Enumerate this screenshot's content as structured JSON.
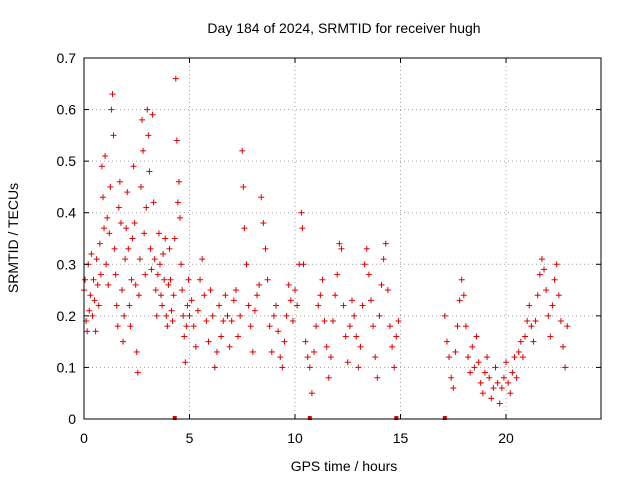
{
  "chart_data": {
    "type": "scatter",
    "title": "Day 184 of 2024, SRMTID for receiver hugh",
    "xlabel": "GPS time / hours",
    "ylabel": "SRMTID / TECUs",
    "xlim": [
      0,
      24.5
    ],
    "ylim": [
      0,
      0.7
    ],
    "xticks": [
      0,
      5,
      10,
      15,
      20
    ],
    "yticks": [
      0,
      0.1,
      0.2,
      0.3,
      0.4,
      0.5,
      0.6,
      0.7
    ],
    "grid": true,
    "marker": "+",
    "marker_color": "#e00000",
    "data_gaps_hours": [
      [
        15.0,
        17.1
      ]
    ],
    "baseline_markers_x": [
      4.3,
      10.7,
      14.8,
      17.1
    ],
    "series": [
      {
        "name": "SRMTID",
        "points": [
          [
            0.0,
            0.25
          ],
          [
            0.05,
            0.27
          ],
          [
            0.1,
            0.19
          ],
          [
            0.15,
            0.17
          ],
          [
            0.2,
            0.3
          ],
          [
            0.25,
            0.21
          ],
          [
            0.3,
            0.24
          ],
          [
            0.35,
            0.32
          ],
          [
            0.4,
            0.2
          ],
          [
            0.45,
            0.27
          ],
          [
            0.5,
            0.23
          ],
          [
            0.55,
            0.17
          ],
          [
            0.6,
            0.31
          ],
          [
            0.65,
            0.26
          ],
          [
            0.7,
            0.22
          ],
          [
            0.75,
            0.34
          ],
          [
            0.8,
            0.28
          ],
          [
            0.85,
            0.49
          ],
          [
            0.9,
            0.43
          ],
          [
            0.95,
            0.37
          ],
          [
            1.0,
            0.51
          ],
          [
            1.05,
            0.3
          ],
          [
            1.1,
            0.39
          ],
          [
            1.15,
            0.26
          ],
          [
            1.2,
            0.36
          ],
          [
            1.25,
            0.45
          ],
          [
            1.3,
            0.6
          ],
          [
            1.35,
            0.63
          ],
          [
            1.4,
            0.55
          ],
          [
            1.45,
            0.33
          ],
          [
            1.5,
            0.28
          ],
          [
            1.55,
            0.22
          ],
          [
            1.6,
            0.18
          ],
          [
            1.65,
            0.41
          ],
          [
            1.7,
            0.46
          ],
          [
            1.75,
            0.38
          ],
          [
            1.8,
            0.25
          ],
          [
            1.85,
            0.15
          ],
          [
            1.9,
            0.2
          ],
          [
            1.95,
            0.31
          ],
          [
            2.0,
            0.37
          ],
          [
            2.05,
            0.44
          ],
          [
            2.1,
            0.33
          ],
          [
            2.15,
            0.22
          ],
          [
            2.2,
            0.18
          ],
          [
            2.25,
            0.27
          ],
          [
            2.3,
            0.35
          ],
          [
            2.35,
            0.49
          ],
          [
            2.4,
            0.38
          ],
          [
            2.45,
            0.26
          ],
          [
            2.5,
            0.13
          ],
          [
            2.55,
            0.09
          ],
          [
            2.6,
            0.24
          ],
          [
            2.65,
            0.31
          ],
          [
            2.7,
            0.45
          ],
          [
            2.75,
            0.58
          ],
          [
            2.8,
            0.52
          ],
          [
            2.85,
            0.36
          ],
          [
            2.9,
            0.28
          ],
          [
            2.95,
            0.41
          ],
          [
            3.0,
            0.6
          ],
          [
            3.05,
            0.55
          ],
          [
            3.1,
            0.48
          ],
          [
            3.15,
            0.33
          ],
          [
            3.2,
            0.29
          ],
          [
            3.25,
            0.59
          ],
          [
            3.3,
            0.42
          ],
          [
            3.35,
            0.31
          ],
          [
            3.4,
            0.25
          ],
          [
            3.45,
            0.2
          ],
          [
            3.5,
            0.28
          ],
          [
            3.55,
            0.36
          ],
          [
            3.6,
            0.3
          ],
          [
            3.65,
            0.24
          ],
          [
            3.7,
            0.22
          ],
          [
            3.75,
            0.32
          ],
          [
            3.8,
            0.27
          ],
          [
            3.85,
            0.35
          ],
          [
            3.9,
            0.2
          ],
          [
            3.95,
            0.18
          ],
          [
            4.0,
            0.26
          ],
          [
            4.05,
            0.33
          ],
          [
            4.1,
            0.27
          ],
          [
            4.15,
            0.21
          ],
          [
            4.2,
            0.19
          ],
          [
            4.25,
            0.24
          ],
          [
            4.3,
            0.35
          ],
          [
            4.35,
            0.66
          ],
          [
            4.4,
            0.54
          ],
          [
            4.45,
            0.42
          ],
          [
            4.5,
            0.46
          ],
          [
            4.55,
            0.39
          ],
          [
            4.6,
            0.3
          ],
          [
            4.65,
            0.25
          ],
          [
            4.7,
            0.2
          ],
          [
            4.75,
            0.16
          ],
          [
            4.8,
            0.11
          ],
          [
            4.85,
            0.18
          ],
          [
            4.9,
            0.22
          ],
          [
            4.95,
            0.27
          ],
          [
            5.0,
            0.2
          ],
          [
            5.1,
            0.23
          ],
          [
            5.2,
            0.18
          ],
          [
            5.3,
            0.14
          ],
          [
            5.4,
            0.21
          ],
          [
            5.5,
            0.27
          ],
          [
            5.6,
            0.31
          ],
          [
            5.7,
            0.24
          ],
          [
            5.8,
            0.19
          ],
          [
            5.9,
            0.15
          ],
          [
            6.0,
            0.25
          ],
          [
            6.1,
            0.2
          ],
          [
            6.2,
            0.1
          ],
          [
            6.3,
            0.13
          ],
          [
            6.4,
            0.22
          ],
          [
            6.5,
            0.16
          ],
          [
            6.6,
            0.19
          ],
          [
            6.7,
            0.24
          ],
          [
            6.8,
            0.2
          ],
          [
            6.9,
            0.14
          ],
          [
            7.0,
            0.19
          ],
          [
            7.1,
            0.23
          ],
          [
            7.2,
            0.25
          ],
          [
            7.3,
            0.16
          ],
          [
            7.4,
            0.2
          ],
          [
            7.5,
            0.52
          ],
          [
            7.55,
            0.45
          ],
          [
            7.6,
            0.37
          ],
          [
            7.7,
            0.3
          ],
          [
            7.8,
            0.22
          ],
          [
            7.9,
            0.18
          ],
          [
            8.0,
            0.13
          ],
          [
            8.1,
            0.21
          ],
          [
            8.2,
            0.24
          ],
          [
            8.3,
            0.26
          ],
          [
            8.4,
            0.43
          ],
          [
            8.5,
            0.38
          ],
          [
            8.6,
            0.33
          ],
          [
            8.7,
            0.27
          ],
          [
            8.8,
            0.18
          ],
          [
            8.9,
            0.13
          ],
          [
            9.0,
            0.2
          ],
          [
            9.1,
            0.22
          ],
          [
            9.2,
            0.17
          ],
          [
            9.3,
            0.12
          ],
          [
            9.4,
            0.1
          ],
          [
            9.5,
            0.15
          ],
          [
            9.6,
            0.2
          ],
          [
            9.7,
            0.26
          ],
          [
            9.8,
            0.23
          ],
          [
            9.9,
            0.19
          ],
          [
            10.0,
            0.25
          ],
          [
            10.1,
            0.22
          ],
          [
            10.2,
            0.3
          ],
          [
            10.3,
            0.4
          ],
          [
            10.35,
            0.37
          ],
          [
            10.4,
            0.3
          ],
          [
            10.5,
            0.15
          ],
          [
            10.6,
            0.12
          ],
          [
            10.7,
            0.1
          ],
          [
            10.8,
            0.05
          ],
          [
            10.9,
            0.13
          ],
          [
            11.0,
            0.18
          ],
          [
            11.1,
            0.22
          ],
          [
            11.2,
            0.24
          ],
          [
            11.3,
            0.27
          ],
          [
            11.4,
            0.19
          ],
          [
            11.5,
            0.14
          ],
          [
            11.6,
            0.08
          ],
          [
            11.7,
            0.12
          ],
          [
            11.8,
            0.19
          ],
          [
            11.9,
            0.24
          ],
          [
            12.0,
            0.28
          ],
          [
            12.1,
            0.34
          ],
          [
            12.2,
            0.33
          ],
          [
            12.3,
            0.22
          ],
          [
            12.4,
            0.16
          ],
          [
            12.5,
            0.11
          ],
          [
            12.6,
            0.18
          ],
          [
            12.7,
            0.23
          ],
          [
            12.8,
            0.2
          ],
          [
            12.9,
            0.16
          ],
          [
            13.0,
            0.1
          ],
          [
            13.1,
            0.14
          ],
          [
            13.2,
            0.22
          ],
          [
            13.3,
            0.3
          ],
          [
            13.4,
            0.33
          ],
          [
            13.5,
            0.28
          ],
          [
            13.6,
            0.23
          ],
          [
            13.7,
            0.18
          ],
          [
            13.8,
            0.12
          ],
          [
            13.9,
            0.08
          ],
          [
            14.0,
            0.2
          ],
          [
            14.1,
            0.26
          ],
          [
            14.2,
            0.31
          ],
          [
            14.3,
            0.34
          ],
          [
            14.4,
            0.25
          ],
          [
            14.5,
            0.18
          ],
          [
            14.6,
            0.14
          ],
          [
            14.7,
            0.1
          ],
          [
            14.8,
            0.16
          ],
          [
            14.9,
            0.19
          ],
          [
            17.1,
            0.2
          ],
          [
            17.2,
            0.15
          ],
          [
            17.3,
            0.12
          ],
          [
            17.4,
            0.08
          ],
          [
            17.5,
            0.06
          ],
          [
            17.6,
            0.13
          ],
          [
            17.7,
            0.18
          ],
          [
            17.8,
            0.23
          ],
          [
            17.9,
            0.27
          ],
          [
            18.0,
            0.24
          ],
          [
            18.1,
            0.18
          ],
          [
            18.2,
            0.12
          ],
          [
            18.3,
            0.09
          ],
          [
            18.4,
            0.14
          ],
          [
            18.5,
            0.1
          ],
          [
            18.6,
            0.16
          ],
          [
            18.7,
            0.11
          ],
          [
            18.8,
            0.07
          ],
          [
            18.9,
            0.05
          ],
          [
            19.0,
            0.09
          ],
          [
            19.1,
            0.12
          ],
          [
            19.2,
            0.08
          ],
          [
            19.3,
            0.04
          ],
          [
            19.4,
            0.06
          ],
          [
            19.5,
            0.1
          ],
          [
            19.6,
            0.07
          ],
          [
            19.7,
            0.03
          ],
          [
            19.8,
            0.06
          ],
          [
            19.9,
            0.08
          ],
          [
            20.0,
            0.11
          ],
          [
            20.1,
            0.07
          ],
          [
            20.2,
            0.05
          ],
          [
            20.3,
            0.09
          ],
          [
            20.4,
            0.12
          ],
          [
            20.5,
            0.08
          ],
          [
            20.6,
            0.13
          ],
          [
            20.7,
            0.15
          ],
          [
            20.8,
            0.12
          ],
          [
            20.9,
            0.16
          ],
          [
            21.0,
            0.19
          ],
          [
            21.1,
            0.22
          ],
          [
            21.2,
            0.18
          ],
          [
            21.3,
            0.15
          ],
          [
            21.4,
            0.19
          ],
          [
            21.5,
            0.24
          ],
          [
            21.6,
            0.28
          ],
          [
            21.7,
            0.31
          ],
          [
            21.8,
            0.29
          ],
          [
            21.9,
            0.25
          ],
          [
            22.0,
            0.2
          ],
          [
            22.1,
            0.16
          ],
          [
            22.2,
            0.22
          ],
          [
            22.3,
            0.27
          ],
          [
            22.4,
            0.3
          ],
          [
            22.5,
            0.24
          ],
          [
            22.6,
            0.19
          ],
          [
            22.7,
            0.14
          ],
          [
            22.8,
            0.1
          ],
          [
            22.9,
            0.18
          ]
        ]
      }
    ]
  }
}
